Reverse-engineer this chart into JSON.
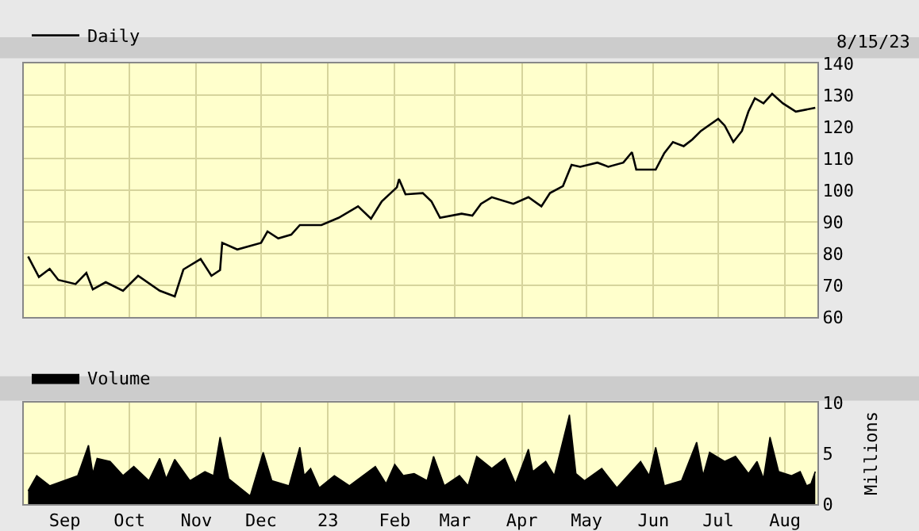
{
  "chart_data": [
    {
      "type": "line",
      "x": [
        "2022-08-15",
        "2022-08-20",
        "2022-08-25",
        "2022-08-29",
        "2022-09-06",
        "2022-09-11",
        "2022-09-14",
        "2022-09-20",
        "2022-09-28",
        "2022-10-05",
        "2022-10-15",
        "2022-10-22",
        "2022-10-26",
        "2022-11-03",
        "2022-11-08",
        "2022-11-12",
        "2022-11-13",
        "2022-11-20",
        "2022-12-01",
        "2022-12-04",
        "2022-12-09",
        "2022-12-15",
        "2022-12-19",
        "2022-12-29",
        "2023-01-06",
        "2023-01-15",
        "2023-01-21",
        "2023-01-26",
        "2023-02-02",
        "2023-02-03",
        "2023-02-06",
        "2023-02-14",
        "2023-02-18",
        "2023-02-22",
        "2023-03-04",
        "2023-03-09",
        "2023-03-13",
        "2023-03-18",
        "2023-03-28",
        "2023-04-04",
        "2023-04-10",
        "2023-04-14",
        "2023-04-20",
        "2023-04-24",
        "2023-04-28",
        "2023-05-06",
        "2023-05-11",
        "2023-05-18",
        "2023-05-22",
        "2023-05-24",
        "2023-06-02",
        "2023-06-06",
        "2023-06-10",
        "2023-06-15",
        "2023-06-19",
        "2023-06-23",
        "2023-07-01",
        "2023-07-04",
        "2023-07-08",
        "2023-07-12",
        "2023-07-15",
        "2023-07-18",
        "2023-07-22",
        "2023-07-26",
        "2023-07-31",
        "2023-08-06",
        "2023-08-15"
      ],
      "series": [
        {
          "name": "Daily",
          "color": "#000000",
          "values": [
            79.1,
            72.6,
            75.2,
            71.7,
            70.4,
            73.9,
            68.7,
            71,
            68.3,
            73,
            68.3,
            66.5,
            75,
            78.3,
            73,
            74.8,
            83.4,
            81.3,
            83.4,
            87,
            84.8,
            86,
            89,
            89,
            91.3,
            94.9,
            91,
            96.5,
            100.9,
            103.5,
            98.7,
            99.1,
            96.5,
            91.3,
            92.6,
            92,
            95.7,
            97.8,
            95.7,
            97.8,
            94.9,
            99.1,
            101.3,
            108,
            107.4,
            108.7,
            107.4,
            108.7,
            112,
            106.5,
            106.5,
            111.7,
            115.2,
            113.9,
            116,
            118.7,
            122.5,
            120.4,
            115.2,
            118.7,
            124.8,
            129,
            127.4,
            130.4,
            127.4,
            124.8,
            126
          ]
        }
      ],
      "xlim": [
        "2022-08-13",
        "2023-08-16"
      ],
      "xticks": [
        {
          "value": "2022-09-01",
          "label": null
        },
        {
          "value": "2022-10-01",
          "label": null
        },
        {
          "value": "2022-11-01",
          "label": null
        },
        {
          "value": "2022-12-01",
          "label": null
        },
        {
          "value": "2023-01-01",
          "label": null
        },
        {
          "value": "2023-02-01",
          "label": null
        },
        {
          "value": "2023-03-01",
          "label": null
        },
        {
          "value": "2023-04-01",
          "label": null
        },
        {
          "value": "2023-05-01",
          "label": null
        },
        {
          "value": "2023-06-01",
          "label": null
        },
        {
          "value": "2023-07-01",
          "label": null
        },
        {
          "value": "2023-08-01",
          "label": null
        }
      ],
      "ylim": [
        60,
        140
      ],
      "yticks": [
        60,
        70,
        80,
        90,
        100,
        110,
        120,
        130,
        140
      ],
      "tick_labels": "y",
      "grid": true,
      "legend": "top left",
      "annotations": [
        "8/15/23"
      ]
    },
    {
      "type": "area",
      "x": [
        "2022-08-15",
        "2022-08-19",
        "2022-08-25",
        "2022-09-07",
        "2022-09-12",
        "2022-09-14",
        "2022-09-16",
        "2022-09-22",
        "2022-09-28",
        "2022-10-03",
        "2022-10-10",
        "2022-10-15",
        "2022-10-18",
        "2022-10-22",
        "2022-10-29",
        "2022-11-05",
        "2022-11-09",
        "2022-11-12",
        "2022-11-16",
        "2022-11-23",
        "2022-11-26",
        "2022-12-02",
        "2022-12-06",
        "2022-12-14",
        "2022-12-19",
        "2022-12-21",
        "2022-12-24",
        "2022-12-28",
        "2023-01-04",
        "2023-01-11",
        "2023-01-23",
        "2023-01-28",
        "2023-02-01",
        "2023-02-05",
        "2023-02-10",
        "2023-02-16",
        "2023-02-19",
        "2023-02-24",
        "2023-03-03",
        "2023-03-07",
        "2023-03-11",
        "2023-03-18",
        "2023-03-24",
        "2023-03-29",
        "2023-04-04",
        "2023-04-06",
        "2023-04-12",
        "2023-04-16",
        "2023-04-23",
        "2023-04-26",
        "2023-04-30",
        "2023-05-08",
        "2023-05-15",
        "2023-05-26",
        "2023-05-30",
        "2023-06-02",
        "2023-06-06",
        "2023-06-14",
        "2023-06-21",
        "2023-06-24",
        "2023-06-27",
        "2023-07-04",
        "2023-07-09",
        "2023-07-15",
        "2023-07-19",
        "2023-07-22",
        "2023-07-25",
        "2023-07-29",
        "2023-08-04",
        "2023-08-08",
        "2023-08-11",
        "2023-08-13",
        "2023-08-15"
      ],
      "series": [
        {
          "name": "Volume",
          "color": "#000000",
          "values": [
            1.3,
            2.8,
            1.8,
            2.8,
            5.8,
            3.0,
            4.5,
            4.2,
            2.8,
            3.7,
            2.3,
            4.5,
            2.5,
            4.4,
            2.3,
            3.2,
            2.8,
            6.6,
            2.5,
            1.3,
            0.8,
            5.1,
            2.3,
            1.8,
            5.6,
            2.8,
            3.5,
            1.6,
            2.8,
            1.8,
            3.7,
            2.0,
            3.9,
            2.8,
            3.0,
            2.3,
            4.7,
            1.8,
            2.8,
            1.8,
            4.7,
            3.5,
            4.5,
            2.0,
            5.4,
            3.2,
            4.2,
            2.8,
            8.8,
            3.0,
            2.3,
            3.5,
            1.6,
            4.2,
            2.8,
            5.6,
            1.8,
            2.3,
            6.1,
            2.8,
            5.1,
            4.2,
            4.7,
            3.0,
            4.2,
            2.5,
            6.6,
            3.2,
            2.8,
            3.2,
            1.8,
            2.0,
            3.2
          ]
        }
      ],
      "xlim": [
        "2022-08-13",
        "2023-08-16"
      ],
      "xticks": [
        {
          "value": "2022-09-01",
          "label": "Sep"
        },
        {
          "value": "2022-10-01",
          "label": "Oct"
        },
        {
          "value": "2022-11-01",
          "label": "Nov"
        },
        {
          "value": "2022-12-01",
          "label": "Dec"
        },
        {
          "value": "2023-01-01",
          "label": "23"
        },
        {
          "value": "2023-02-01",
          "label": "Feb"
        },
        {
          "value": "2023-03-01",
          "label": "Mar"
        },
        {
          "value": "2023-04-01",
          "label": "Apr"
        },
        {
          "value": "2023-05-01",
          "label": "May"
        },
        {
          "value": "2023-06-01",
          "label": "Jun"
        },
        {
          "value": "2023-07-01",
          "label": "Jul"
        },
        {
          "value": "2023-08-01",
          "label": "Aug"
        }
      ],
      "ylim": [
        0,
        10
      ],
      "yticks": [
        0,
        5,
        10
      ],
      "ylabel": "Millions",
      "grid": true,
      "legend": "top left"
    }
  ]
}
